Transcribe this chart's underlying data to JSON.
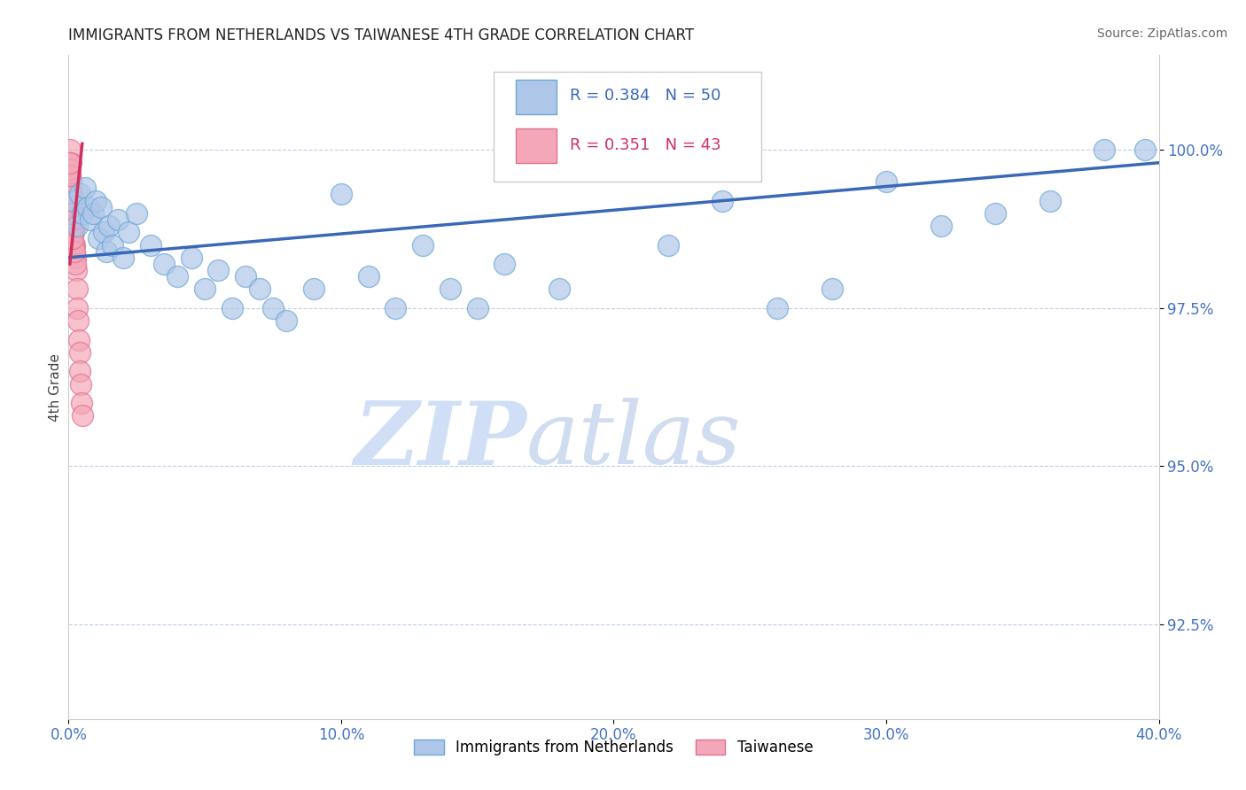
{
  "title": "IMMIGRANTS FROM NETHERLANDS VS TAIWANESE 4TH GRADE CORRELATION CHART",
  "source": "Source: ZipAtlas.com",
  "ylabel": "4th Grade",
  "xlim": [
    0.0,
    40.0
  ],
  "ylim": [
    91.0,
    101.5
  ],
  "yticks": [
    92.5,
    95.0,
    97.5,
    100.0
  ],
  "ytick_labels": [
    "92.5%",
    "95.0%",
    "97.5%",
    "100.0%"
  ],
  "xticks": [
    0.0,
    10.0,
    20.0,
    30.0,
    40.0
  ],
  "xtick_labels": [
    "0.0%",
    "10.0%",
    "20.0%",
    "30.0%",
    "40.0%"
  ],
  "blue_R": 0.384,
  "blue_N": 50,
  "pink_R": 0.351,
  "pink_N": 43,
  "blue_color": "#aec6e8",
  "pink_color": "#f4a7b9",
  "blue_edge": "#6fa8d6",
  "pink_edge": "#e07090",
  "blue_line_color": "#3a68b8",
  "pink_line_color": "#d03060",
  "watermark_zip": "ZIP",
  "watermark_atlas": "atlas",
  "watermark_color": "#d0dff5",
  "legend_label_blue": "Immigrants from Netherlands",
  "legend_label_pink": "Taiwanese",
  "title_fontsize": 12,
  "blue_x": [
    0.2,
    0.3,
    0.4,
    0.5,
    0.6,
    0.7,
    0.8,
    0.9,
    1.0,
    1.1,
    1.2,
    1.3,
    1.4,
    1.5,
    1.6,
    1.8,
    2.0,
    2.2,
    2.5,
    3.0,
    3.5,
    4.0,
    4.5,
    5.0,
    5.5,
    6.0,
    6.5,
    7.0,
    7.5,
    8.0,
    9.0,
    10.0,
    11.0,
    12.0,
    13.0,
    14.0,
    15.0,
    16.0,
    18.0,
    20.0,
    22.0,
    24.0,
    26.0,
    28.0,
    30.0,
    32.0,
    34.0,
    36.0,
    38.0,
    39.5
  ],
  "blue_y": [
    99.2,
    98.8,
    99.3,
    99.0,
    99.4,
    99.1,
    98.9,
    99.0,
    99.2,
    98.6,
    99.1,
    98.7,
    98.4,
    98.8,
    98.5,
    98.9,
    98.3,
    98.7,
    99.0,
    98.5,
    98.2,
    98.0,
    98.3,
    97.8,
    98.1,
    97.5,
    98.0,
    97.8,
    97.5,
    97.3,
    97.8,
    99.3,
    98.0,
    97.5,
    98.5,
    97.8,
    97.5,
    98.2,
    97.8,
    100.0,
    98.5,
    99.2,
    97.5,
    97.8,
    99.5,
    98.8,
    99.0,
    99.2,
    100.0,
    100.0
  ],
  "pink_x": [
    0.05,
    0.08,
    0.1,
    0.12,
    0.14,
    0.16,
    0.18,
    0.2,
    0.22,
    0.25,
    0.28,
    0.3,
    0.32,
    0.35,
    0.38,
    0.4,
    0.42,
    0.45,
    0.48,
    0.5,
    0.15,
    0.1,
    0.12,
    0.08,
    0.06,
    0.09,
    0.11,
    0.13,
    0.15,
    0.2,
    0.25,
    0.18,
    0.22,
    0.1,
    0.08,
    0.12,
    0.06,
    0.09,
    0.14,
    0.16,
    0.11,
    0.07,
    0.05
  ],
  "pink_y": [
    100.0,
    99.8,
    99.5,
    99.3,
    99.1,
    99.0,
    98.8,
    98.7,
    98.5,
    98.3,
    98.1,
    97.8,
    97.5,
    97.3,
    97.0,
    96.8,
    96.5,
    96.3,
    96.0,
    95.8,
    99.2,
    99.0,
    98.9,
    99.4,
    99.6,
    99.3,
    99.1,
    98.9,
    98.7,
    98.5,
    98.2,
    98.8,
    98.4,
    99.2,
    99.5,
    99.0,
    99.7,
    99.3,
    98.9,
    98.6,
    99.0,
    99.6,
    99.8
  ],
  "pink_line_x0": 0.05,
  "pink_line_x1": 0.5,
  "pink_line_y0": 98.2,
  "pink_line_y1": 100.1,
  "blue_line_x0": 0.0,
  "blue_line_x1": 40.0,
  "blue_line_y0": 98.3,
  "blue_line_y1": 99.8
}
